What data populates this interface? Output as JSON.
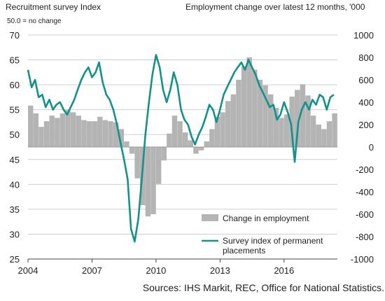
{
  "chart_data": {
    "type": "bar+line",
    "left_axis_title": "Recruitment survey Index",
    "left_axis_note": "50.0 = no change",
    "right_axis_title": "Employment change over latest 12 months, '000",
    "source": "Sources: IHS Markit, REC, Office for National Statistics.",
    "left_ylim": [
      25,
      70
    ],
    "left_ticks": [
      "25",
      "30",
      "35",
      "40",
      "45",
      "50",
      "55",
      "60",
      "65",
      "70"
    ],
    "right_ylim": [
      -1000,
      1000
    ],
    "right_ticks": [
      "-1000",
      "-800",
      "-600",
      "-400",
      "-200",
      "0",
      "200",
      "400",
      "600",
      "800",
      "1000"
    ],
    "x_range": [
      2004,
      2018.5
    ],
    "x_ticks": [
      "2004",
      "2007",
      "2010",
      "2013",
      "2016"
    ],
    "grid": true,
    "legend_position": "bottom-right",
    "series": [
      {
        "name": "Change in employment",
        "kind": "bar",
        "axis": "right",
        "color": "#b4b4b4",
        "x": [
          2004.0,
          2004.25,
          2004.5,
          2004.75,
          2005.0,
          2005.25,
          2005.5,
          2005.75,
          2006.0,
          2006.25,
          2006.5,
          2006.75,
          2007.0,
          2007.25,
          2007.5,
          2007.75,
          2008.0,
          2008.25,
          2008.5,
          2008.75,
          2009.0,
          2009.25,
          2009.5,
          2009.75,
          2010.0,
          2010.25,
          2010.5,
          2010.75,
          2011.0,
          2011.25,
          2011.5,
          2011.75,
          2012.0,
          2012.25,
          2012.5,
          2012.75,
          2013.0,
          2013.25,
          2013.5,
          2013.75,
          2014.0,
          2014.25,
          2014.5,
          2014.75,
          2015.0,
          2015.25,
          2015.5,
          2015.75,
          2016.0,
          2016.25,
          2016.5,
          2016.75,
          2017.0,
          2017.25,
          2017.5,
          2017.75,
          2018.0,
          2018.25
        ],
        "values": [
          370,
          300,
          180,
          230,
          280,
          260,
          300,
          330,
          310,
          280,
          240,
          230,
          230,
          270,
          240,
          230,
          220,
          160,
          50,
          -60,
          -280,
          -520,
          -620,
          -600,
          -330,
          -120,
          120,
          280,
          230,
          130,
          60,
          -60,
          -30,
          50,
          160,
          270,
          310,
          410,
          470,
          600,
          720,
          800,
          690,
          600,
          550,
          470,
          350,
          260,
          290,
          450,
          510,
          560,
          460,
          280,
          200,
          160,
          230,
          300
        ]
      },
      {
        "name": "Survey index of permanent placements",
        "kind": "line",
        "axis": "left",
        "color": "#14918b",
        "x": [
          2004.0,
          2004.17,
          2004.33,
          2004.5,
          2004.67,
          2004.83,
          2005.0,
          2005.17,
          2005.33,
          2005.5,
          2005.67,
          2005.83,
          2006.0,
          2006.17,
          2006.33,
          2006.5,
          2006.67,
          2006.83,
          2007.0,
          2007.17,
          2007.33,
          2007.5,
          2007.67,
          2007.83,
          2008.0,
          2008.17,
          2008.33,
          2008.5,
          2008.67,
          2008.83,
          2009.0,
          2009.17,
          2009.33,
          2009.5,
          2009.67,
          2009.83,
          2010.0,
          2010.17,
          2010.33,
          2010.5,
          2010.67,
          2010.83,
          2011.0,
          2011.17,
          2011.33,
          2011.5,
          2011.67,
          2011.83,
          2012.0,
          2012.17,
          2012.33,
          2012.5,
          2012.67,
          2012.83,
          2013.0,
          2013.17,
          2013.33,
          2013.5,
          2013.67,
          2013.83,
          2014.0,
          2014.17,
          2014.33,
          2014.5,
          2014.67,
          2014.83,
          2015.0,
          2015.17,
          2015.33,
          2015.5,
          2015.67,
          2015.83,
          2016.0,
          2016.17,
          2016.33,
          2016.5,
          2016.67,
          2016.83,
          2017.0,
          2017.17,
          2017.33,
          2017.5,
          2017.67,
          2017.83,
          2018.0,
          2018.17,
          2018.33
        ],
        "values": [
          63,
          59.5,
          61,
          57.5,
          58,
          55.5,
          57,
          55,
          56,
          56.5,
          55,
          54,
          55.5,
          57,
          59,
          61,
          62.5,
          63.5,
          61.5,
          62.5,
          64.5,
          60.5,
          58,
          57,
          55,
          52,
          48.5,
          45,
          41,
          31,
          28.5,
          33,
          41,
          50,
          56.5,
          62,
          66,
          63.5,
          59,
          56.5,
          59,
          62.5,
          60,
          55,
          53,
          52,
          49.5,
          48,
          50,
          51.5,
          53.5,
          56,
          55,
          52.5,
          55,
          58,
          59.5,
          61,
          62.5,
          63.5,
          64.5,
          63,
          65,
          63.5,
          62,
          60,
          58.5,
          57,
          55.5,
          56,
          53,
          54,
          56.5,
          54.5,
          52,
          44.5,
          52.5,
          55,
          56.5,
          55,
          57,
          56,
          58,
          57.5,
          55,
          57.5,
          58
        ]
      }
    ]
  }
}
